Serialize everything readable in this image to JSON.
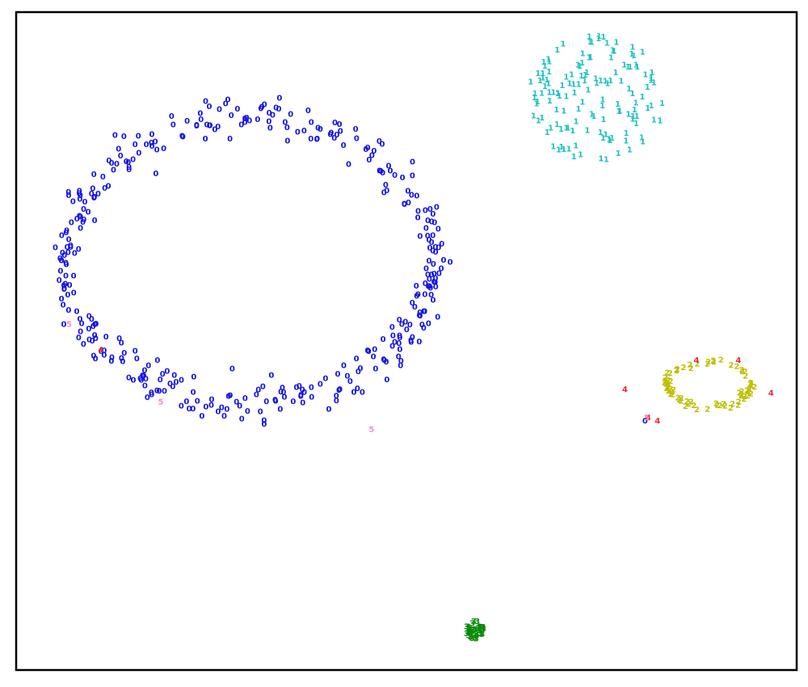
{
  "chart_data": {
    "type": "scatter",
    "title": "",
    "xlabel": "",
    "ylabel": "",
    "xlim": [
      0,
      100
    ],
    "ylim": [
      0,
      100
    ],
    "grid": false,
    "legend": "none",
    "marker_style": "digit label glyphs",
    "series": [
      {
        "label": "0",
        "color": "#1414e6",
        "cluster": {
          "shape": "ring",
          "cx": 30.0,
          "cy": 62.3,
          "rx": 23.6,
          "ry": 21.8,
          "n": 380,
          "spread": 1.6
        },
        "extra_points": [
          [
            11.1,
            47.8
          ],
          [
            80.7,
            37.7
          ]
        ]
      },
      {
        "label": "1",
        "color": "#1fc2c2",
        "cluster": {
          "shape": "blob",
          "cx": 74.5,
          "cy": 87.0,
          "rx": 9.0,
          "ry": 9.5,
          "n": 140,
          "spread": 0
        }
      },
      {
        "label": "2",
        "color": "#bfbf00",
        "cluster": {
          "shape": "ring",
          "cx": 88.8,
          "cy": 43.4,
          "rx": 5.4,
          "ry": 3.4,
          "n": 75,
          "spread": 0.5
        }
      },
      {
        "label": "3",
        "color": "#0a8a0a",
        "cluster": {
          "shape": "blob",
          "cx": 58.8,
          "cy": 5.8,
          "rx": 1.2,
          "ry": 1.4,
          "n": 40,
          "spread": 0
        }
      },
      {
        "label": "4",
        "color": "#f0282d",
        "points": [
          [
            10.7,
            48.6
          ],
          [
            87.3,
            47.0
          ],
          [
            92.7,
            47.0
          ],
          [
            78.1,
            42.5
          ],
          [
            96.9,
            42.0
          ],
          [
            81.1,
            38.2
          ],
          [
            82.3,
            37.7
          ]
        ]
      },
      {
        "label": "5",
        "color": "#f08ecf",
        "points": [
          [
            6.6,
            52.5
          ],
          [
            18.4,
            40.6
          ],
          [
            45.5,
            36.4
          ],
          [
            80.9,
            38.2
          ]
        ]
      }
    ]
  }
}
